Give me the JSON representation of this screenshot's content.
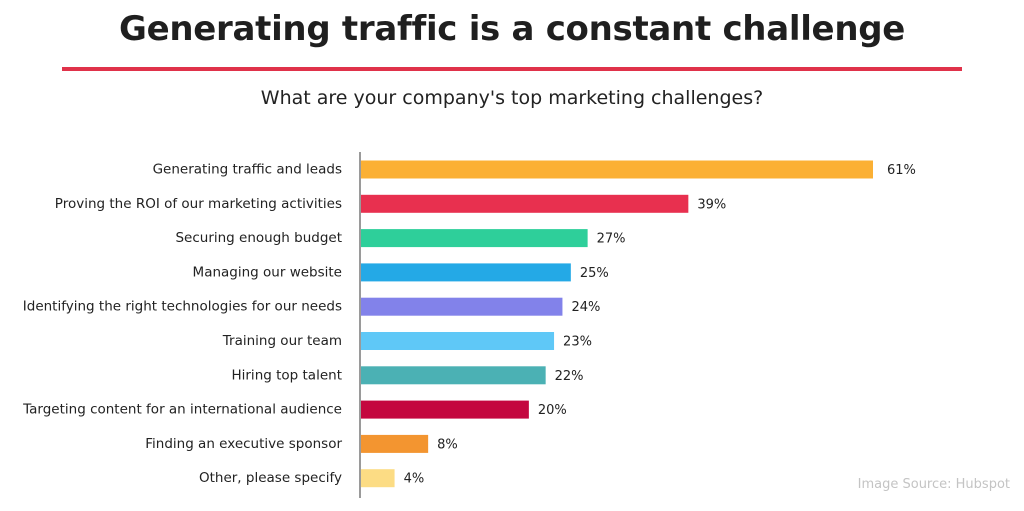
{
  "header": {
    "title": "Generating traffic is a constant challenge"
  },
  "colors": {
    "title_rule": "#e0324a",
    "axis": "#9a9a9a"
  },
  "chart_data": {
    "type": "bar",
    "orientation": "horizontal",
    "title": "What are your company's top marketing challenges?",
    "xlabel": "",
    "ylabel": "",
    "value_suffix": "%",
    "xlim": [
      0,
      61
    ],
    "grid": false,
    "categories": [
      "Generating traffic and leads",
      "Proving the ROI of our marketing activities",
      "Securing enough budget",
      "Managing our website",
      "Identifying the right technologies for our needs",
      "Training our team",
      "Hiring top talent",
      "Targeting content for an international audience",
      "Finding an executive sponsor",
      "Other, please specify"
    ],
    "values": [
      61,
      39,
      27,
      25,
      24,
      23,
      22,
      20,
      8,
      4
    ],
    "value_labels": [
      "61%",
      "39%",
      "27%",
      "25%",
      "24%",
      "23%",
      "22%",
      "20%",
      "8%",
      "4%"
    ],
    "bar_colors": [
      "#fbb034",
      "#e8304f",
      "#2ecf9a",
      "#24a9e6",
      "#8282ea",
      "#5fc8f7",
      "#4bb1b4",
      "#c4073f",
      "#f39530",
      "#fcdc84"
    ]
  },
  "footer": {
    "source": "Image Source: Hubspot"
  }
}
